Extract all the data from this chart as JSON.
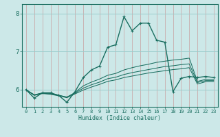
{
  "xlabel": "Humidex (Indice chaleur)",
  "bg_color": "#cce8e8",
  "vgrid_color": "#c8a0a0",
  "hgrid_color": "#99cccc",
  "line_color": "#1a6e60",
  "x_ticks": [
    0,
    1,
    2,
    3,
    4,
    5,
    6,
    7,
    8,
    9,
    10,
    11,
    12,
    13,
    14,
    15,
    16,
    17,
    18,
    19,
    20,
    21,
    22,
    23
  ],
  "y_ticks": [
    6,
    7,
    8
  ],
  "ylim": [
    5.55,
    8.25
  ],
  "xlim": [
    -0.5,
    23.5
  ],
  "main_series": [
    6.0,
    5.78,
    5.92,
    5.92,
    5.85,
    5.67,
    5.95,
    6.32,
    6.52,
    6.62,
    7.12,
    7.18,
    7.92,
    7.55,
    7.75,
    7.75,
    7.3,
    7.25,
    5.95,
    6.3,
    6.35,
    6.32,
    6.35,
    6.32
  ],
  "flat_series": [
    [
      6.0,
      5.86,
      5.92,
      5.9,
      5.86,
      5.8,
      5.93,
      6.1,
      6.2,
      6.28,
      6.38,
      6.43,
      6.52,
      6.58,
      6.63,
      6.67,
      6.72,
      6.75,
      6.78,
      6.8,
      6.83,
      6.22,
      6.27,
      6.27
    ],
    [
      6.0,
      5.87,
      5.91,
      5.89,
      5.85,
      5.81,
      5.91,
      6.04,
      6.13,
      6.2,
      6.29,
      6.33,
      6.4,
      6.45,
      6.49,
      6.53,
      6.57,
      6.61,
      6.63,
      6.66,
      6.68,
      6.19,
      6.24,
      6.24
    ],
    [
      6.0,
      5.85,
      5.9,
      5.88,
      5.84,
      5.79,
      5.89,
      5.99,
      6.07,
      6.14,
      6.22,
      6.26,
      6.32,
      6.36,
      6.4,
      6.44,
      6.47,
      6.5,
      6.53,
      6.55,
      6.58,
      6.15,
      6.21,
      6.21
    ]
  ]
}
